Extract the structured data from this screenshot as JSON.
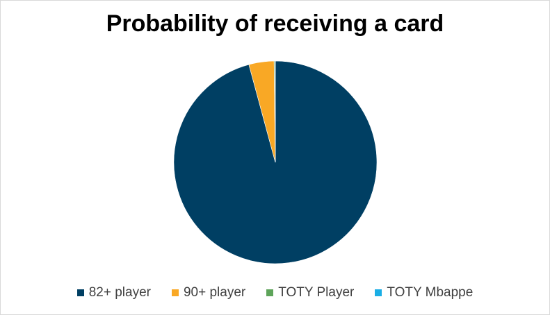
{
  "chart_data": {
    "type": "pie",
    "title": "Probability of receiving a card",
    "categories": [
      "82+ player",
      "90+ player",
      "TOTY Player",
      "TOTY Mbappe"
    ],
    "values": [
      95.8,
      4.0,
      0.15,
      0.05
    ],
    "colors": [
      "#003f63",
      "#f9a825",
      "#5ea45a",
      "#1aaee5"
    ],
    "legend_position": "bottom"
  }
}
